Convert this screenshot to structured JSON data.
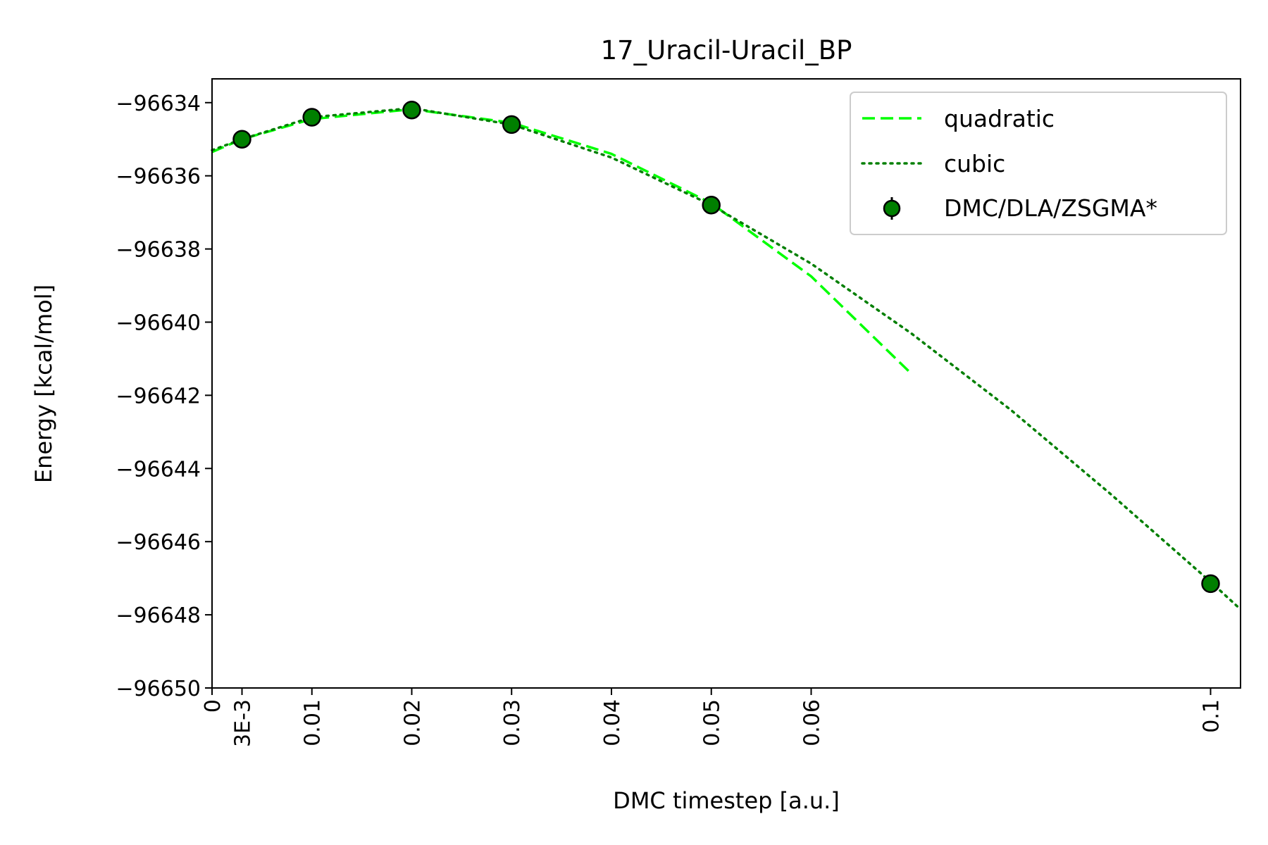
{
  "chart_data": {
    "type": "scatter",
    "title": "17_Uracil-Uracil_BP",
    "xlabel": "DMC timestep [a.u.]",
    "ylabel": "Energy [kcal/mol]",
    "xlim": [
      0,
      0.103
    ],
    "ylim": [
      -96650.0,
      -96633.35
    ],
    "xticks": [
      {
        "value": 0,
        "label": "0"
      },
      {
        "value": 0.003,
        "label": "3E-3"
      },
      {
        "value": 0.01,
        "label": "0.01"
      },
      {
        "value": 0.02,
        "label": "0.02"
      },
      {
        "value": 0.03,
        "label": "0.03"
      },
      {
        "value": 0.04,
        "label": "0.04"
      },
      {
        "value": 0.05,
        "label": "0.05"
      },
      {
        "value": 0.06,
        "label": "0.06"
      },
      {
        "value": 0.1,
        "label": "0.1"
      }
    ],
    "yticks": [
      {
        "value": -96634,
        "label": "−96634"
      },
      {
        "value": -96636,
        "label": "−96636"
      },
      {
        "value": -96638,
        "label": "−96638"
      },
      {
        "value": -96640,
        "label": "−96640"
      },
      {
        "value": -96642,
        "label": "−96642"
      },
      {
        "value": -96644,
        "label": "−96644"
      },
      {
        "value": -96646,
        "label": "−96646"
      },
      {
        "value": -96648,
        "label": "−96648"
      },
      {
        "value": -96650,
        "label": "−96650"
      }
    ],
    "grid": false,
    "legend_position": "top-right",
    "series": [
      {
        "name": "quadratic",
        "kind": "line",
        "style": "dashed",
        "color": "#00ff00",
        "x": [
          0,
          0.003,
          0.01,
          0.02,
          0.03,
          0.04,
          0.05,
          0.06,
          0.07
        ],
        "y": [
          -96635.35,
          -96635.0,
          -96634.45,
          -96634.18,
          -96634.55,
          -96635.4,
          -96636.75,
          -96638.75,
          -96641.4
        ]
      },
      {
        "name": "cubic",
        "kind": "line",
        "style": "dotted",
        "color": "#007f00",
        "x": [
          0,
          0.003,
          0.01,
          0.02,
          0.03,
          0.04,
          0.05,
          0.06,
          0.07,
          0.08,
          0.09,
          0.1,
          0.103
        ],
        "y": [
          -96635.3,
          -96635.0,
          -96634.4,
          -96634.15,
          -96634.6,
          -96635.5,
          -96636.8,
          -96638.4,
          -96640.3,
          -96642.4,
          -96644.7,
          -96647.1,
          -96647.85
        ]
      },
      {
        "name": "DMC/DLA/ZSGMA*",
        "kind": "points",
        "color": "#007f00",
        "x": [
          0.003,
          0.01,
          0.02,
          0.03,
          0.05,
          0.1
        ],
        "y": [
          -96635.0,
          -96634.4,
          -96634.2,
          -96634.6,
          -96636.8,
          -96647.15
        ]
      }
    ]
  }
}
